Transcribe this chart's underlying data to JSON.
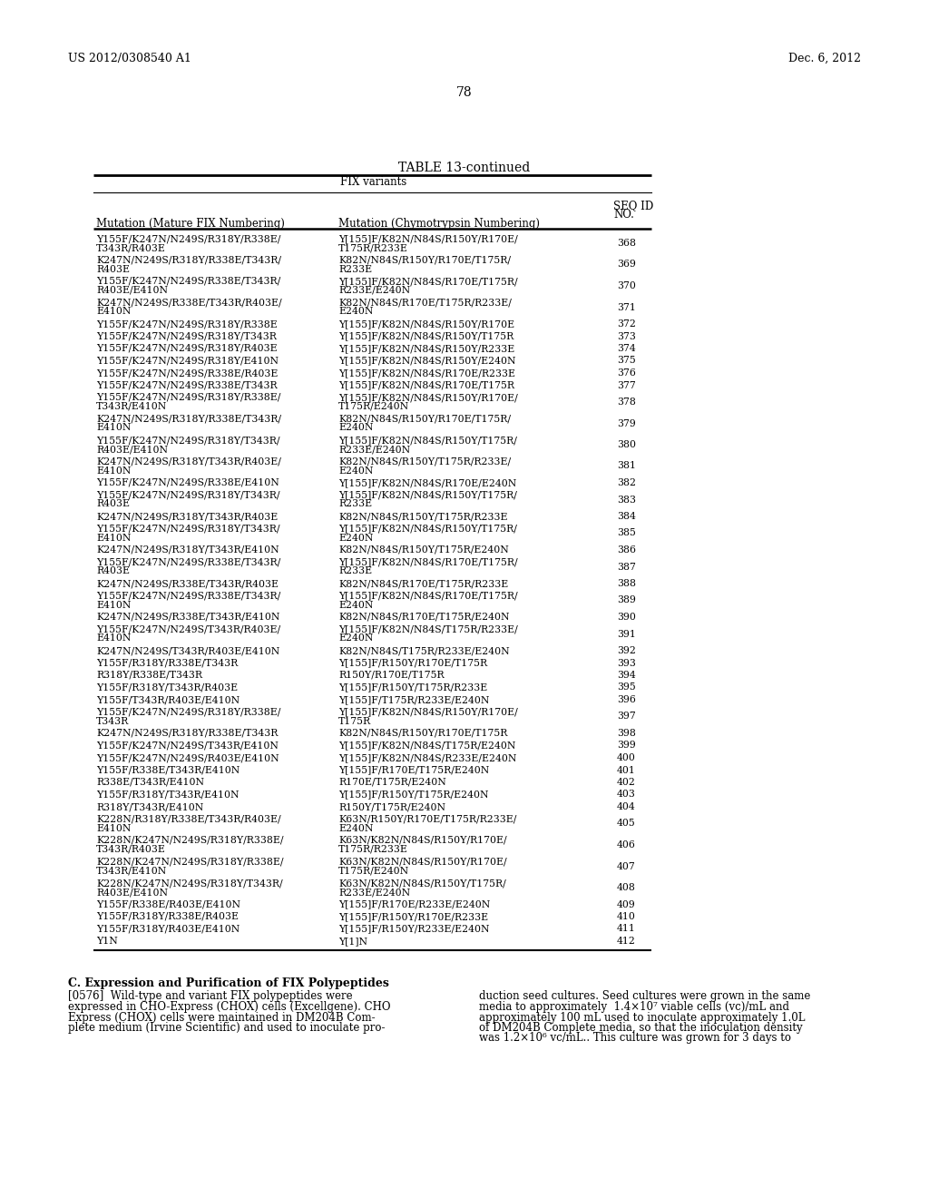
{
  "page_left": "US 2012/0308540 A1",
  "page_right": "Dec. 6, 2012",
  "page_number": "78",
  "table_title": "TABLE 13-continued",
  "table_subtitle": "FIX variants",
  "col1_header": "Mutation (Mature FIX Numbering)",
  "col2_header": "Mutation (Chymotrypsin Numbering)",
  "col3_header_line1": "SEQ ID",
  "col3_header_line2": "NO.",
  "rows": [
    [
      "Y155F/K247N/N249S/R318Y/R338E/\nT343R/R403E",
      "Y[155]F/K82N/N84S/R150Y/R170E/\nT175R/R233E",
      "368"
    ],
    [
      "K247N/N249S/R318Y/R338E/T343R/\nR403E",
      "K82N/N84S/R150Y/R170E/T175R/\nR233E",
      "369"
    ],
    [
      "Y155F/K247N/N249S/R338E/T343R/\nR403E/E410N",
      "Y[155]F/K82N/N84S/R170E/T175R/\nR233E/E240N",
      "370"
    ],
    [
      "K247N/N249S/R338E/T343R/R403E/\nE410N",
      "K82N/N84S/R170E/T175R/R233E/\nE240N",
      "371"
    ],
    [
      "Y155F/K247N/N249S/R318Y/R338E",
      "Y[155]F/K82N/N84S/R150Y/R170E",
      "372"
    ],
    [
      "Y155F/K247N/N249S/R318Y/T343R",
      "Y[155]F/K82N/N84S/R150Y/T175R",
      "373"
    ],
    [
      "Y155F/K247N/N249S/R318Y/R403E",
      "Y[155]F/K82N/N84S/R150Y/R233E",
      "374"
    ],
    [
      "Y155F/K247N/N249S/R318Y/E410N",
      "Y[155]F/K82N/N84S/R150Y/E240N",
      "375"
    ],
    [
      "Y155F/K247N/N249S/R338E/R403E",
      "Y[155]F/K82N/N84S/R170E/R233E",
      "376"
    ],
    [
      "Y155F/K247N/N249S/R338E/T343R",
      "Y[155]F/K82N/N84S/R170E/T175R",
      "377"
    ],
    [
      "Y155F/K247N/N249S/R318Y/R338E/\nT343R/E410N",
      "Y[155]F/K82N/N84S/R150Y/R170E/\nT175R/E240N",
      "378"
    ],
    [
      "K247N/N249S/R318Y/R338E/T343R/\nE410N",
      "K82N/N84S/R150Y/R170E/T175R/\nE240N",
      "379"
    ],
    [
      "Y155F/K247N/N249S/R318Y/T343R/\nR403E/E410N",
      "Y[155]F/K82N/N84S/R150Y/T175R/\nR233E/E240N",
      "380"
    ],
    [
      "K247N/N249S/R318Y/T343R/R403E/\nE410N",
      "K82N/N84S/R150Y/T175R/R233E/\nE240N",
      "381"
    ],
    [
      "Y155F/K247N/N249S/R338E/E410N",
      "Y[155]F/K82N/N84S/R170E/E240N",
      "382"
    ],
    [
      "Y155F/K247N/N249S/R318Y/T343R/\nR403E",
      "Y[155]F/K82N/N84S/R150Y/T175R/\nR233E",
      "383"
    ],
    [
      "K247N/N249S/R318Y/T343R/R403E",
      "K82N/N84S/R150Y/T175R/R233E",
      "384"
    ],
    [
      "Y155F/K247N/N249S/R318Y/T343R/\nE410N",
      "Y[155]F/K82N/N84S/R150Y/T175R/\nE240N",
      "385"
    ],
    [
      "K247N/N249S/R318Y/T343R/E410N",
      "K82N/N84S/R150Y/T175R/E240N",
      "386"
    ],
    [
      "Y155F/K247N/N249S/R338E/T343R/\nR403E",
      "Y[155]F/K82N/N84S/R170E/T175R/\nR233E",
      "387"
    ],
    [
      "K247N/N249S/R338E/T343R/R403E",
      "K82N/N84S/R170E/T175R/R233E",
      "388"
    ],
    [
      "Y155F/K247N/N249S/R338E/T343R/\nE410N",
      "Y[155]F/K82N/N84S/R170E/T175R/\nE240N",
      "389"
    ],
    [
      "K247N/N249S/R338E/T343R/E410N",
      "K82N/N84S/R170E/T175R/E240N",
      "390"
    ],
    [
      "Y155F/K247N/N249S/T343R/R403E/\nE410N",
      "Y[155]F/K82N/N84S/T175R/R233E/\nE240N",
      "391"
    ],
    [
      "K247N/N249S/T343R/R403E/E410N",
      "K82N/N84S/T175R/R233E/E240N",
      "392"
    ],
    [
      "Y155F/R318Y/R338E/T343R",
      "Y[155]F/R150Y/R170E/T175R",
      "393"
    ],
    [
      "R318Y/R338E/T343R",
      "R150Y/R170E/T175R",
      "394"
    ],
    [
      "Y155F/R318Y/T343R/R403E",
      "Y[155]F/R150Y/T175R/R233E",
      "395"
    ],
    [
      "Y155F/T343R/R403E/E410N",
      "Y[155]F/T175R/R233E/E240N",
      "396"
    ],
    [
      "Y155F/K247N/N249S/R318Y/R338E/\nT343R",
      "Y[155]F/K82N/N84S/R150Y/R170E/\nT175R",
      "397"
    ],
    [
      "K247N/N249S/R318Y/R338E/T343R",
      "K82N/N84S/R150Y/R170E/T175R",
      "398"
    ],
    [
      "Y155F/K247N/N249S/T343R/E410N",
      "Y[155]F/K82N/N84S/T175R/E240N",
      "399"
    ],
    [
      "Y155F/K247N/N249S/R403E/E410N",
      "Y[155]F/K82N/N84S/R233E/E240N",
      "400"
    ],
    [
      "Y155F/R338E/T343R/E410N",
      "Y[155]F/R170E/T175R/E240N",
      "401"
    ],
    [
      "R338E/T343R/E410N",
      "R170E/T175R/E240N",
      "402"
    ],
    [
      "Y155F/R318Y/T343R/E410N",
      "Y[155]F/R150Y/T175R/E240N",
      "403"
    ],
    [
      "R318Y/T343R/E410N",
      "R150Y/T175R/E240N",
      "404"
    ],
    [
      "K228N/R318Y/R338E/T343R/R403E/\nE410N",
      "K63N/R150Y/R170E/T175R/R233E/\nE240N",
      "405"
    ],
    [
      "K228N/K247N/N249S/R318Y/R338E/\nT343R/R403E",
      "K63N/K82N/N84S/R150Y/R170E/\nT175R/R233E",
      "406"
    ],
    [
      "K228N/K247N/N249S/R318Y/R338E/\nT343R/E410N",
      "K63N/K82N/N84S/R150Y/R170E/\nT175R/E240N",
      "407"
    ],
    [
      "K228N/K247N/N249S/R318Y/T343R/\nR403E/E410N",
      "K63N/K82N/N84S/R150Y/T175R/\nR233E/E240N",
      "408"
    ],
    [
      "Y155F/R338E/R403E/E410N",
      "Y[155]F/R170E/R233E/E240N",
      "409"
    ],
    [
      "Y155F/R318Y/R338E/R403E",
      "Y[155]F/R150Y/R170E/R233E",
      "410"
    ],
    [
      "Y155F/R318Y/R403E/E410N",
      "Y[155]F/R150Y/R233E/E240N",
      "411"
    ],
    [
      "Y1N",
      "Y[1]N",
      "412"
    ]
  ],
  "paragraph_title": "C. Expression and Purification of FIX Polypeptides",
  "paragraph_label": "[0576]",
  "left_col_lines": [
    "Wild-type and variant FIX polypeptides were",
    "expressed in CHO-Express (CHOX) cells (Excellgene). CHO",
    "Express (CHOX) cells were maintained in DM204B Com-",
    "plete medium (Irvine Scientific) and used to inoculate pro-"
  ],
  "right_col_lines": [
    "duction seed cultures. Seed cultures were grown in the same",
    "media to approximately  1.4×10⁷ viable cells (vc)/mL and",
    "approximately 100 mL used to inoculate approximately 1.0L",
    "of DM204B Complete media, so that the inoculation density",
    "was 1.2×10⁶ vc/mL.. This culture was grown for 3 days to"
  ]
}
